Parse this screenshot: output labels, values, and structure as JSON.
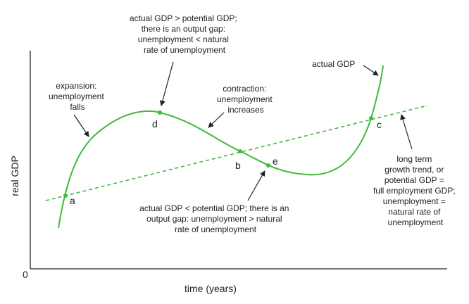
{
  "axes": {
    "y_label": "real GDP",
    "x_label": "time (years)",
    "origin": "0"
  },
  "curves": {
    "actual_color": "#3fba3f",
    "trend_color": "#3fba3f"
  },
  "points": {
    "a": "a",
    "b": "b",
    "c": "c",
    "d": "d",
    "e": "e"
  },
  "annotations": {
    "top": [
      "actual GDP > potential GDP;",
      "there is an output gap:",
      "unemployment < natural",
      "rate of unemployment"
    ],
    "expansion": [
      "expansion:",
      "unemployment",
      "falls"
    ],
    "contraction": [
      "contraction:",
      "unemployment",
      "increases"
    ],
    "actual_gdp": "actual GDP",
    "bottom": [
      "actual GDP < potential GDP; there is an",
      "output gap: unemployment > natural",
      "rate of unemployment"
    ],
    "trend": [
      "long term",
      "growth trend, or",
      "potential GDP =",
      "full employment GDP;",
      "unemployment =",
      "natural rate of",
      "unemployment"
    ]
  }
}
